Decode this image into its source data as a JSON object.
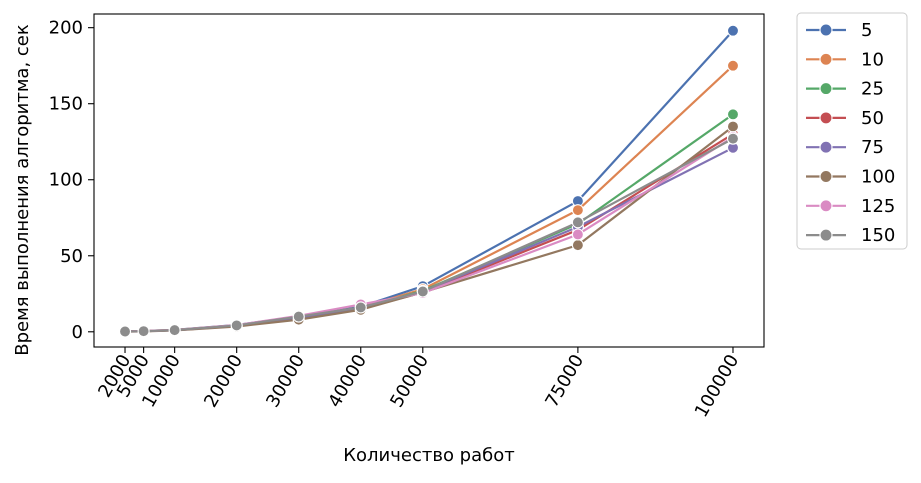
{
  "chart_data": {
    "type": "line",
    "xlabel": "Количество работ",
    "ylabel": "Время выполнения алгоритма, сек",
    "x": [
      2000,
      5000,
      10000,
      20000,
      30000,
      40000,
      50000,
      75000,
      100000
    ],
    "x_tick_labels": [
      "2000",
      "5000",
      "10000",
      "20000",
      "30000",
      "40000",
      "50000",
      "75000",
      "100000"
    ],
    "y_ticks": [
      0,
      50,
      100,
      150,
      200
    ],
    "xlim": [
      -3000,
      105000
    ],
    "ylim": [
      -10,
      209
    ],
    "grid": false,
    "legend_placement": "outside-right",
    "marker": "circle",
    "series": [
      {
        "name": "5",
        "color": "#4c72b0",
        "values": [
          0.2,
          0.5,
          1.3,
          4.5,
          10.0,
          16.5,
          30.0,
          86.0,
          198.0
        ]
      },
      {
        "name": "10",
        "color": "#dd8452",
        "values": [
          0.2,
          0.5,
          1.2,
          4.3,
          9.5,
          16.0,
          28.0,
          80.0,
          175.0
        ]
      },
      {
        "name": "25",
        "color": "#55a868",
        "values": [
          0.2,
          0.4,
          1.1,
          4.0,
          9.0,
          15.5,
          27.0,
          71.0,
          143.0
        ]
      },
      {
        "name": "50",
        "color": "#c44e52",
        "values": [
          0.2,
          0.4,
          1.0,
          3.8,
          8.8,
          15.0,
          26.0,
          67.0,
          130.0
        ]
      },
      {
        "name": "75",
        "color": "#8172b3",
        "values": [
          0.2,
          0.4,
          1.0,
          3.9,
          9.0,
          15.0,
          26.5,
          69.0,
          121.0
        ]
      },
      {
        "name": "100",
        "color": "#937860",
        "values": [
          0.1,
          0.3,
          0.9,
          3.5,
          8.0,
          14.5,
          26.0,
          57.0,
          135.0
        ]
      },
      {
        "name": "125",
        "color": "#da8bc3",
        "values": [
          0.2,
          0.5,
          1.2,
          4.4,
          10.5,
          18.0,
          25.5,
          64.0,
          128.0
        ]
      },
      {
        "name": "150",
        "color": "#8c8c8c",
        "values": [
          0.2,
          0.4,
          1.1,
          4.2,
          10.0,
          16.0,
          26.5,
          72.0,
          127.0
        ]
      }
    ]
  }
}
